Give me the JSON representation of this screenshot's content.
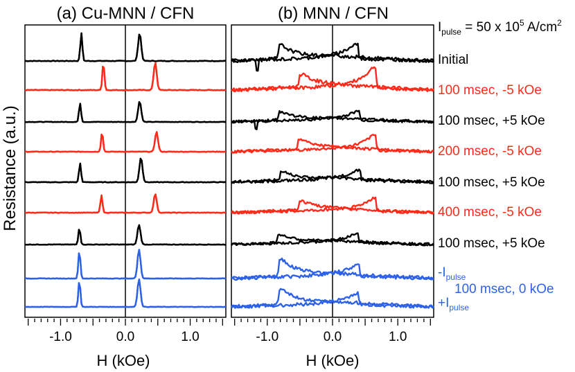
{
  "header": {
    "pulse_prefix": "I",
    "pulse_sub": "pulse",
    "pulse_value": " = 50 x 10",
    "pulse_exp": "5",
    "pulse_unit": " A/cm",
    "pulse_unit_exp": "2"
  },
  "axis_labels": {
    "ylabel": "Resistance (a.u.)",
    "xlabel_left": "H (kOe)",
    "xlabel_right": "H (kOe)"
  },
  "row_labels": [
    {
      "text": "Initial",
      "color": "#000000"
    },
    {
      "text": "100 msec, -5 kOe",
      "color": "#ff2a1a"
    },
    {
      "text": "100 msec, +5 kOe",
      "color": "#000000"
    },
    {
      "text": "200 msec, -5 kOe",
      "color": "#ff2a1a"
    },
    {
      "text": "100 msec, +5 kOe",
      "color": "#000000"
    },
    {
      "text": "400 msec, -5 kOe",
      "color": "#ff2a1a"
    },
    {
      "text": "100 msec, +5 kOe",
      "color": "#000000"
    }
  ],
  "blue_labels": {
    "minus_prefix": "-I",
    "minus_sub": "pulse",
    "plus_prefix": "+I",
    "plus_sub": "pulse",
    "shared": "100 msec, 0 kOe"
  },
  "colors": {
    "black": "#000000",
    "red": "#ff2a1a",
    "blue": "#2d62e8"
  },
  "chart_data": [
    {
      "type": "line",
      "title": "(a) Cu-MNN / CFN",
      "xlabel": "H (kOe)",
      "ylabel": "Resistance (a.u.)",
      "xlim": [
        -1.55,
        1.55
      ],
      "xticks": [
        -1.0,
        0.0,
        1.0
      ],
      "xtick_labels": [
        "-1.0",
        "0.0",
        "1.0"
      ],
      "series": [
        {
          "name": "Initial",
          "color": "black",
          "peaks": [
            -0.68,
            0.22
          ],
          "heights": [
            1.0,
            1.0
          ],
          "noise": 0.03
        },
        {
          "name": "100 msec, -5 kOe",
          "color": "red",
          "peaks": [
            -0.34,
            0.46
          ],
          "heights": [
            1.0,
            1.0
          ],
          "noise": 0.03
        },
        {
          "name": "100 msec, +5 kOe",
          "color": "black",
          "peaks": [
            -0.7,
            0.22
          ],
          "heights": [
            0.9,
            1.0
          ],
          "noise": 0.03
        },
        {
          "name": "200 msec, -5 kOe",
          "color": "red",
          "peaks": [
            -0.36,
            0.48
          ],
          "heights": [
            0.9,
            0.9
          ],
          "noise": 0.03
        },
        {
          "name": "100 msec, +5 kOe",
          "color": "black",
          "peaks": [
            -0.7,
            0.24
          ],
          "heights": [
            0.8,
            1.05
          ],
          "noise": 0.03
        },
        {
          "name": "400 msec, -5 kOe",
          "color": "red",
          "peaks": [
            -0.37,
            0.46
          ],
          "heights": [
            0.8,
            0.85
          ],
          "noise": 0.03
        },
        {
          "name": "100 msec, +5 kOe",
          "color": "black",
          "peaks": [
            -0.71,
            0.21
          ],
          "heights": [
            0.8,
            0.95
          ],
          "noise": 0.03
        },
        {
          "name": "-Ipulse",
          "color": "blue",
          "peaks": [
            -0.71,
            0.21
          ],
          "heights": [
            1.0,
            1.05
          ],
          "noise": 0.02
        },
        {
          "name": "+Ipulse",
          "color": "blue",
          "peaks": [
            -0.71,
            0.21
          ],
          "heights": [
            0.95,
            1.0
          ],
          "noise": 0.02
        }
      ]
    },
    {
      "type": "line",
      "title": "(b) MNN / CFN",
      "xlabel": "H (kOe)",
      "ylabel": "Resistance (a.u.)",
      "xlim": [
        -1.55,
        1.55
      ],
      "xticks": [
        -1.0,
        0.0,
        1.0
      ],
      "xtick_labels": [
        "-1.0",
        "0.0",
        "1.0"
      ],
      "series": [
        {
          "name": "Initial",
          "color": "black",
          "peaks": [
            -0.78,
            0.34
          ],
          "heights": [
            0.6,
            0.65
          ],
          "noise": 0.12,
          "dip": -1.15
        },
        {
          "name": "100 msec, -5 kOe",
          "color": "red",
          "peaks": [
            -0.46,
            0.62
          ],
          "heights": [
            0.55,
            0.95
          ],
          "noise": 0.12
        },
        {
          "name": "100 msec, +5 kOe",
          "color": "black",
          "peaks": [
            -0.78,
            0.37
          ],
          "heights": [
            0.5,
            0.55
          ],
          "noise": 0.12,
          "dip": -1.18
        },
        {
          "name": "200 msec, -5 kOe",
          "color": "red",
          "peaks": [
            -0.48,
            0.62
          ],
          "heights": [
            0.55,
            0.85
          ],
          "noise": 0.12
        },
        {
          "name": "100 msec, +5 kOe",
          "color": "black",
          "peaks": [
            -0.75,
            0.38
          ],
          "heights": [
            0.45,
            0.55
          ],
          "noise": 0.12
        },
        {
          "name": "400 msec, -5 kOe",
          "color": "red",
          "peaks": [
            -0.46,
            0.62
          ],
          "heights": [
            0.5,
            0.75
          ],
          "noise": 0.12
        },
        {
          "name": "100 msec, +5 kOe",
          "color": "black",
          "peaks": [
            -0.8,
            0.35
          ],
          "heights": [
            0.5,
            0.55
          ],
          "noise": 0.12
        },
        {
          "name": "-Ipulse",
          "color": "blue",
          "peaks": [
            -0.77,
            0.36
          ],
          "heights": [
            0.75,
            0.5
          ],
          "noise": 0.12
        },
        {
          "name": "+Ipulse",
          "color": "blue",
          "peaks": [
            -0.77,
            0.35
          ],
          "heights": [
            0.7,
            0.5
          ],
          "noise": 0.12
        }
      ]
    }
  ]
}
